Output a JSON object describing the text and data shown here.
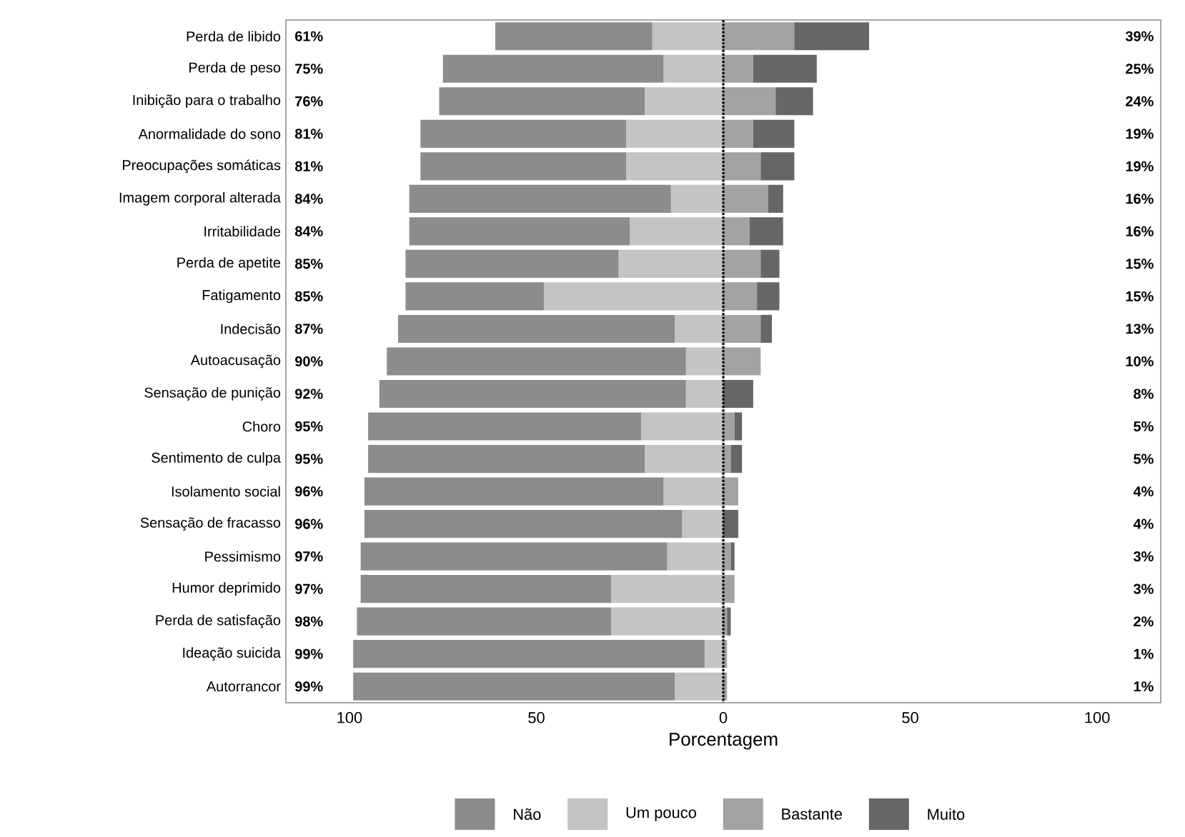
{
  "chart_data": {
    "type": "bar",
    "orientation": "horizontal",
    "stacked": true,
    "xlabel": "Porcentagem",
    "categories": [
      "Perda de libido",
      "Perda de peso",
      "Inibição para o trabalho",
      "Anormalidade do sono",
      "Preocupações somáticas",
      "Imagem corporal alterada",
      "Irritabilidade",
      "Perda de apetite",
      "Fatigamento",
      "Indecisão",
      "Autoacusação",
      "Sensação de punição",
      "Choro",
      "Sentimento de culpa",
      "Isolamento social",
      "Sensação de fracasso",
      "Pessimismo",
      "Humor deprimido",
      "Perda de satisfação",
      "Ideação suicida",
      "Autorrancor"
    ],
    "series": [
      {
        "name": "Um pouco",
        "color": "#c4c4c4",
        "values": [
          -19,
          -16,
          -21,
          -26,
          -26,
          -14,
          -25,
          -28,
          -48,
          -13,
          -10,
          -10,
          -22,
          -21,
          -16,
          -11,
          -15,
          -30,
          -30,
          -5,
          -13
        ]
      },
      {
        "name": "Não",
        "color": "#8c8c8c",
        "values": [
          -42,
          -59,
          -55,
          -55,
          -55,
          -70,
          -59,
          -57,
          -37,
          -74,
          -80,
          -82,
          -73,
          -74,
          -80,
          -85,
          -82,
          -67,
          -68,
          -94,
          -86
        ]
      },
      {
        "name": "Bastante",
        "color": "#a3a3a3",
        "values": [
          19,
          8,
          14,
          8,
          10,
          12,
          7,
          10,
          9,
          10,
          10,
          0,
          3,
          2,
          4,
          0,
          2,
          3,
          1,
          1,
          1
        ]
      },
      {
        "name": "Muito",
        "color": "#666666",
        "values": [
          20,
          17,
          10,
          11,
          9,
          4,
          9,
          5,
          6,
          3,
          0,
          8,
          2,
          3,
          0,
          4,
          1,
          0,
          1,
          0,
          0
        ]
      }
    ],
    "totals": [
      [
        "61%",
        "39%"
      ],
      [
        "75%",
        "25%"
      ],
      [
        "76%",
        "24%"
      ],
      [
        "81%",
        "19%"
      ],
      [
        "81%",
        "19%"
      ],
      [
        "84%",
        "16%"
      ],
      [
        "84%",
        "16%"
      ],
      [
        "85%",
        "15%"
      ],
      [
        "85%",
        "15%"
      ],
      [
        "87%",
        "13%"
      ],
      [
        "90%",
        "10%"
      ],
      [
        "92%",
        "8%"
      ],
      [
        "95%",
        "5%"
      ],
      [
        "95%",
        "5%"
      ],
      [
        "96%",
        "4%"
      ],
      [
        "96%",
        "4%"
      ],
      [
        "97%",
        "3%"
      ],
      [
        "97%",
        "3%"
      ],
      [
        "98%",
        "2%"
      ],
      [
        "99%",
        "1%"
      ],
      [
        "99%",
        "1%"
      ]
    ],
    "xlim": [
      -117,
      117
    ],
    "xticks": [
      {
        "value": -100,
        "label": "100"
      },
      {
        "value": -50,
        "label": "50"
      },
      0,
      50,
      {
        "value": 100,
        "label": "100"
      }
    ],
    "ref_lines": [
      {
        "axis": "x",
        "value": 0,
        "color": "#000000",
        "line_style": "dotted"
      }
    ],
    "legend": "bottom",
    "grid": false
  }
}
